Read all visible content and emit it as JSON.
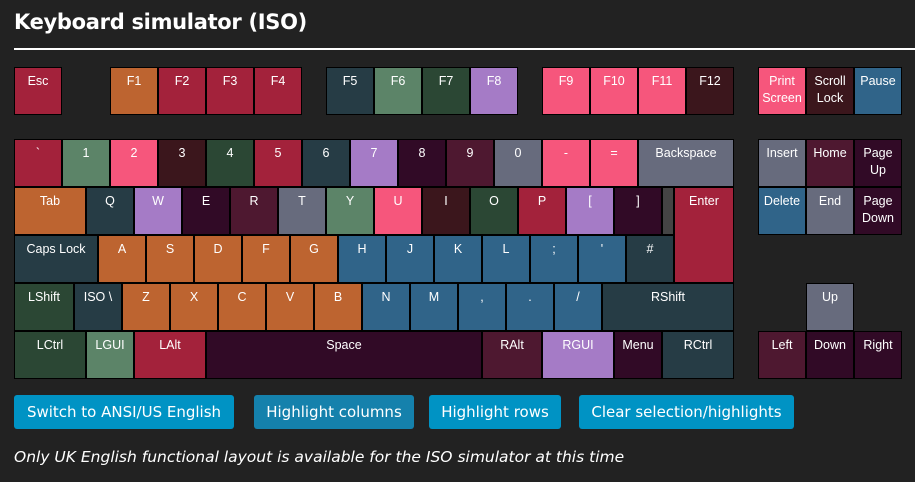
{
  "title": "Keyboard simulator (ISO)",
  "colors": {
    "red": "#a3223b",
    "orange": "#bd6430",
    "slate": "#263c45",
    "sage": "#5c8468",
    "green": "#2b4734",
    "pink": "#f6567c",
    "brown": "#3b161c",
    "purple": "#a57bc6",
    "plum": "#310a26",
    "maroon": "#4e1830",
    "gray": "#676b7d",
    "blue": "#306489",
    "filler": "#444444"
  },
  "keys": [
    {
      "label": "Esc",
      "color": "red"
    },
    {
      "label": "F1",
      "color": "orange"
    },
    {
      "label": "F2",
      "color": "red"
    },
    {
      "label": "F3",
      "color": "red"
    },
    {
      "label": "F4",
      "color": "red"
    },
    {
      "label": "F5",
      "color": "slate"
    },
    {
      "label": "F6",
      "color": "sage"
    },
    {
      "label": "F7",
      "color": "green"
    },
    {
      "label": "F8",
      "color": "purple"
    },
    {
      "label": "F9",
      "color": "pink"
    },
    {
      "label": "F10",
      "color": "pink"
    },
    {
      "label": "F11",
      "color": "pink"
    },
    {
      "label": "F12",
      "color": "brown"
    },
    {
      "label": "Print\nScreen",
      "color": "pink"
    },
    {
      "label": "Scroll\nLock",
      "color": "brown"
    },
    {
      "label": "Pause",
      "color": "blue"
    },
    {
      "label": "`",
      "color": "red"
    },
    {
      "label": "1",
      "color": "sage"
    },
    {
      "label": "2",
      "color": "pink"
    },
    {
      "label": "3",
      "color": "brown"
    },
    {
      "label": "4",
      "color": "green"
    },
    {
      "label": "5",
      "color": "red"
    },
    {
      "label": "6",
      "color": "slate"
    },
    {
      "label": "7",
      "color": "purple"
    },
    {
      "label": "8",
      "color": "plum"
    },
    {
      "label": "9",
      "color": "maroon"
    },
    {
      "label": "0",
      "color": "gray"
    },
    {
      "label": "-",
      "color": "pink"
    },
    {
      "label": "=",
      "color": "pink"
    },
    {
      "label": "Backspace",
      "color": "gray"
    },
    {
      "label": "Insert",
      "color": "gray"
    },
    {
      "label": "Home",
      "color": "maroon"
    },
    {
      "label": "Page\nUp",
      "color": "plum"
    },
    {
      "label": "Tab",
      "color": "orange"
    },
    {
      "label": "Q",
      "color": "slate"
    },
    {
      "label": "W",
      "color": "purple"
    },
    {
      "label": "E",
      "color": "plum"
    },
    {
      "label": "R",
      "color": "maroon"
    },
    {
      "label": "T",
      "color": "gray"
    },
    {
      "label": "Y",
      "color": "sage"
    },
    {
      "label": "U",
      "color": "pink"
    },
    {
      "label": "I",
      "color": "brown"
    },
    {
      "label": "O",
      "color": "green"
    },
    {
      "label": "P",
      "color": "red"
    },
    {
      "label": "[",
      "color": "purple"
    },
    {
      "label": "]",
      "color": "plum"
    },
    {
      "label": "",
      "color": "filler"
    },
    {
      "label": "Enter",
      "color": "red"
    },
    {
      "label": "Delete",
      "color": "blue"
    },
    {
      "label": "End",
      "color": "gray"
    },
    {
      "label": "Page\nDown",
      "color": "plum"
    },
    {
      "label": "Caps Lock",
      "color": "slate"
    },
    {
      "label": "A",
      "color": "orange"
    },
    {
      "label": "S",
      "color": "orange"
    },
    {
      "label": "D",
      "color": "orange"
    },
    {
      "label": "F",
      "color": "orange"
    },
    {
      "label": "G",
      "color": "orange"
    },
    {
      "label": "H",
      "color": "blue"
    },
    {
      "label": "J",
      "color": "blue"
    },
    {
      "label": "K",
      "color": "blue"
    },
    {
      "label": "L",
      "color": "blue"
    },
    {
      "label": ";",
      "color": "blue"
    },
    {
      "label": "'",
      "color": "blue"
    },
    {
      "label": "#",
      "color": "slate"
    },
    {
      "label": "LShift",
      "color": "green"
    },
    {
      "label": "ISO \\",
      "color": "slate"
    },
    {
      "label": "Z",
      "color": "orange"
    },
    {
      "label": "X",
      "color": "orange"
    },
    {
      "label": "C",
      "color": "orange"
    },
    {
      "label": "V",
      "color": "orange"
    },
    {
      "label": "B",
      "color": "orange"
    },
    {
      "label": "N",
      "color": "blue"
    },
    {
      "label": "M",
      "color": "blue"
    },
    {
      "label": ",",
      "color": "blue"
    },
    {
      "label": ".",
      "color": "blue"
    },
    {
      "label": "/",
      "color": "blue"
    },
    {
      "label": "RShift",
      "color": "slate"
    },
    {
      "label": "Up",
      "color": "gray"
    },
    {
      "label": "LCtrl",
      "color": "green"
    },
    {
      "label": "LGUI",
      "color": "sage"
    },
    {
      "label": "LAlt",
      "color": "red"
    },
    {
      "label": "Space",
      "color": "plum"
    },
    {
      "label": "RAlt",
      "color": "maroon"
    },
    {
      "label": "RGUI",
      "color": "purple"
    },
    {
      "label": "Menu",
      "color": "plum"
    },
    {
      "label": "RCtrl",
      "color": "slate"
    },
    {
      "label": "Left",
      "color": "maroon"
    },
    {
      "label": "Down",
      "color": "plum"
    },
    {
      "label": "Right",
      "color": "plum"
    }
  ],
  "buttons": {
    "switch": "Switch to ANSI/US English",
    "columns": "Highlight columns",
    "rows": "Highlight rows",
    "clear": "Clear selection/highlights"
  },
  "note": "Only UK English functional layout is available for the ISO simulator at this time"
}
